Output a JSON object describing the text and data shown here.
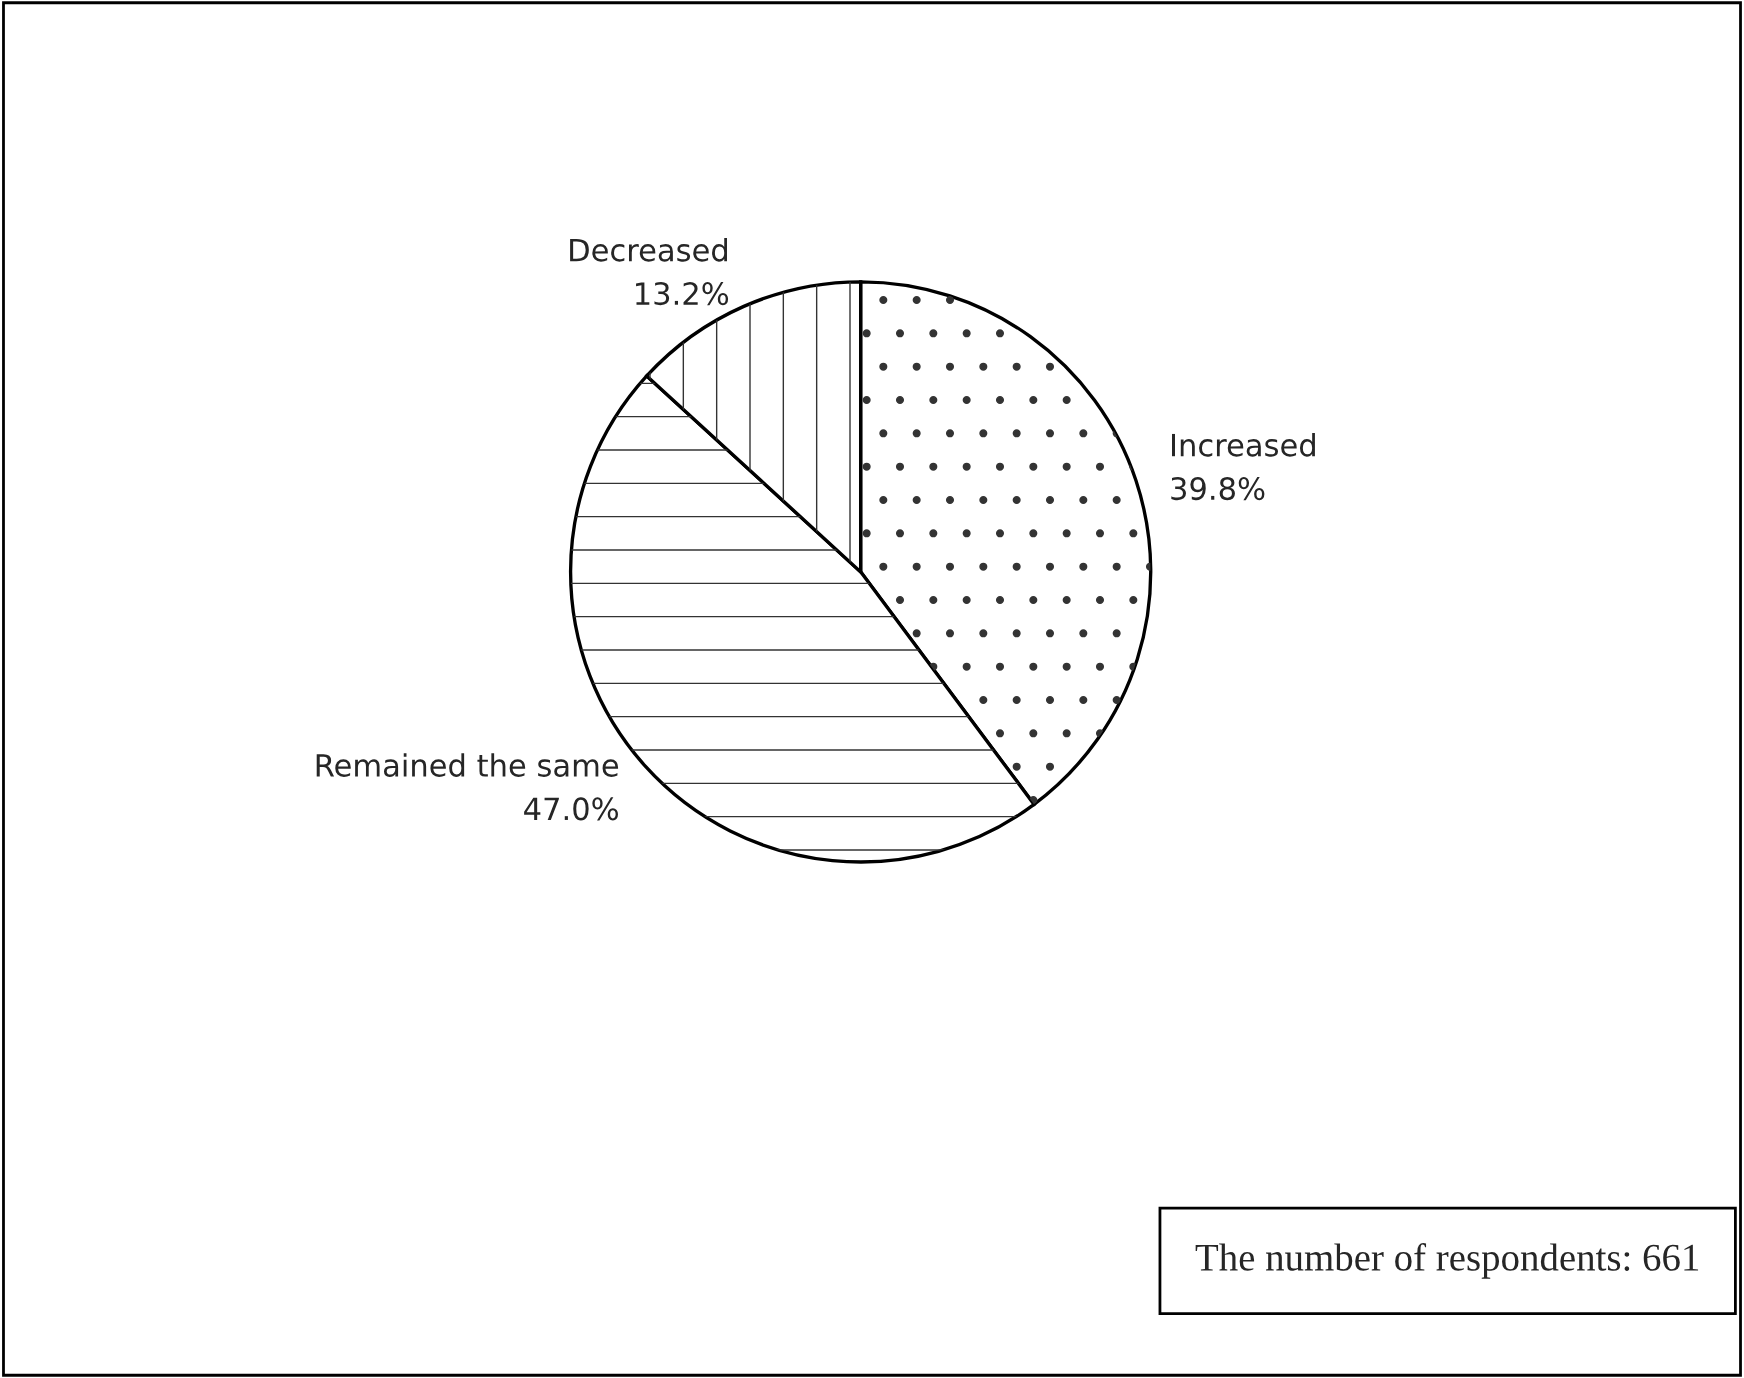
{
  "chart_data": {
    "type": "pie",
    "categories": [
      "Increased",
      "Remained the same",
      "Decreased"
    ],
    "values": [
      39.8,
      47.0,
      13.2
    ],
    "value_labels": [
      "39.8%",
      "47.0%",
      "13.2%"
    ],
    "colors": [
      "#ffffff",
      "#ffffff",
      "#ffffff"
    ],
    "annotations": [
      "The number of respondents: 661"
    ]
  }
}
